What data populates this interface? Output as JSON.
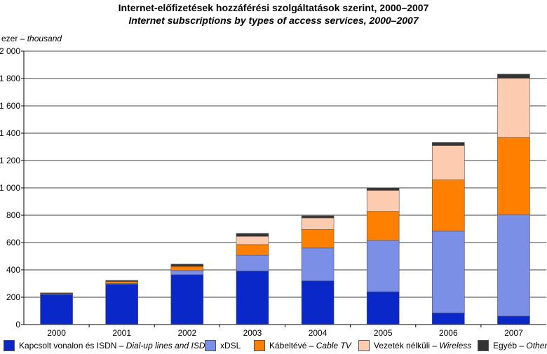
{
  "title": "Internet-előfizetések hozzáférési szolgáltatások szerint, 2000–2007",
  "subtitle": "Internet subscriptions by types of access services, 2000–2007",
  "ylabel_hu": "ezer –",
  "ylabel_en": "thousand",
  "chart_data": {
    "type": "bar",
    "stacked": true,
    "title": "Internet-előfizetések hozzáférési szolgáltatások szerint, 2000–2007",
    "subtitle": "Internet subscriptions by types of access services, 2000–2007",
    "ylabel": "ezer – thousand",
    "xlabel": "",
    "ylim": [
      0,
      2000
    ],
    "yticks": [
      0,
      200,
      400,
      600,
      800,
      1000,
      1200,
      1400,
      1600,
      1800,
      2000
    ],
    "ytick_labels": [
      "0",
      "200",
      "400",
      "600",
      "800",
      "1 000",
      "1 200",
      "1 400",
      "1 600",
      "1 800",
      "2 000"
    ],
    "grid": true,
    "legend_position": "bottom",
    "categories": [
      "2000",
      "2001",
      "2002",
      "2003",
      "2004",
      "2005",
      "2006",
      "2007"
    ],
    "series": [
      {
        "name_hu": "Kapcsolt vonalon és ISDN –",
        "name_en": "Dial-up lines and ISDN",
        "color": "#0a28c8",
        "values": [
          220,
          295,
          365,
          392,
          320,
          240,
          85,
          62
        ]
      },
      {
        "name_hu": "xDSL",
        "name_en": "",
        "color": "#7b8fe6",
        "values": [
          2,
          5,
          30,
          115,
          240,
          375,
          598,
          740
        ]
      },
      {
        "name_hu": "Kábeltévé –",
        "name_en": "Cable TV",
        "color": "#ff8000",
        "values": [
          5,
          15,
          30,
          78,
          135,
          212,
          375,
          565
        ]
      },
      {
        "name_hu": "Vezeték nélküli –",
        "name_en": "Wireless",
        "color": "#fccbb0",
        "values": [
          0,
          0,
          0,
          60,
          85,
          155,
          252,
          435
        ]
      },
      {
        "name_hu": "Egyéb –",
        "name_en": "Other",
        "color": "#333333",
        "values": [
          5,
          8,
          17,
          22,
          15,
          18,
          22,
          30
        ]
      }
    ]
  }
}
